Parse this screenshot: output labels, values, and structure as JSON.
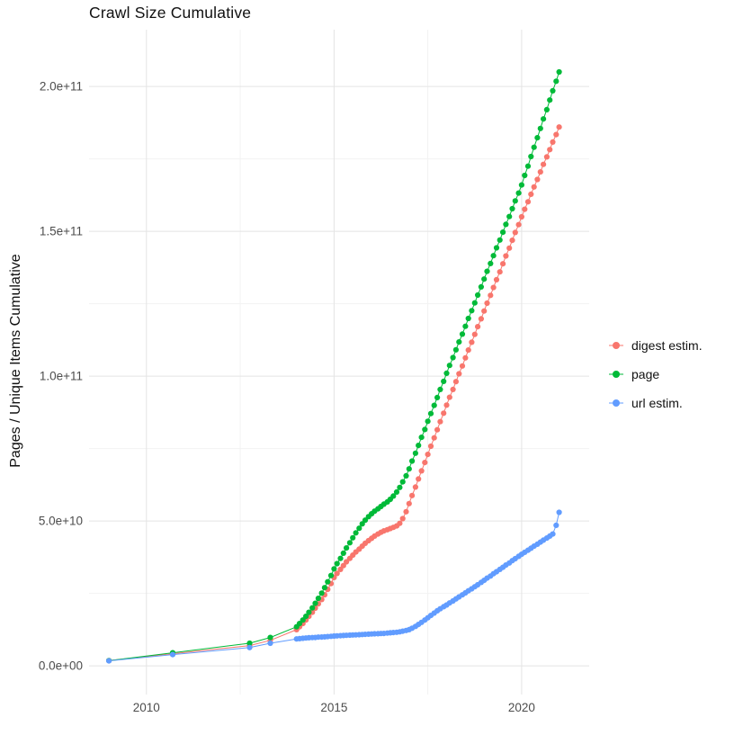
{
  "colors": {
    "background": "#FFFFFF",
    "grid_major": "#E4E4E4",
    "grid_minor": "#F2F2F2",
    "axis_text": "#4D4D4D",
    "title_text": "#111111"
  },
  "chart_data": {
    "type": "scatter",
    "title": "Crawl Size Cumulative",
    "xlabel": "",
    "ylabel": "Pages / Unique Items Cumulative",
    "legend_position": "right",
    "grid": true,
    "y_scale": "1e9",
    "x_domain": [
      2008.47,
      2021.8
    ],
    "y_domain_e9": [
      -9.9,
      219.6
    ],
    "x_ticks": {
      "values": [
        2010,
        2015,
        2020
      ],
      "labels": [
        "2010",
        "2015",
        "2020"
      ]
    },
    "x_minor_ticks": [
      2012.5,
      2017.5
    ],
    "y_ticks": {
      "values_e9": [
        0,
        50,
        100,
        150,
        200
      ],
      "labels": [
        "0.0e+00",
        "5.0e+10",
        "1.0e+11",
        "1.5e+11",
        "2.0e+11"
      ]
    },
    "y_minor_ticks_e9": [
      25,
      75,
      125,
      175
    ],
    "x": [
      2009,
      2010.7,
      2012.75,
      2013.3,
      2014,
      2014.08,
      2014.17,
      2014.25,
      2014.33,
      2014.42,
      2014.5,
      2014.58,
      2014.67,
      2014.75,
      2014.83,
      2014.92,
      2015,
      2015.08,
      2015.17,
      2015.25,
      2015.33,
      2015.42,
      2015.5,
      2015.58,
      2015.67,
      2015.75,
      2015.83,
      2015.92,
      2016,
      2016.08,
      2016.17,
      2016.25,
      2016.33,
      2016.42,
      2016.5,
      2016.58,
      2016.67,
      2016.75,
      2016.83,
      2016.92,
      2017,
      2017.08,
      2017.17,
      2017.25,
      2017.33,
      2017.42,
      2017.5,
      2017.58,
      2017.67,
      2017.75,
      2017.83,
      2017.92,
      2018,
      2018.08,
      2018.17,
      2018.25,
      2018.33,
      2018.42,
      2018.5,
      2018.58,
      2018.67,
      2018.75,
      2018.83,
      2018.92,
      2019,
      2019.08,
      2019.17,
      2019.25,
      2019.33,
      2019.42,
      2019.5,
      2019.58,
      2019.67,
      2019.75,
      2019.83,
      2019.92,
      2020,
      2020.08,
      2020.17,
      2020.25,
      2020.33,
      2020.42,
      2020.5,
      2020.58,
      2020.67,
      2020.75,
      2020.83,
      2020.92,
      2021
    ],
    "series": [
      {
        "name": "digest estim.",
        "color": "#F8766D",
        "values_e9": [
          1.8,
          4.2,
          7.0,
          8.8,
          12.5,
          13.5,
          14.6,
          15.8,
          17.1,
          18.5,
          19.9,
          21.4,
          22.9,
          24.5,
          26.4,
          28.4,
          30.5,
          31.9,
          33.3,
          34.6,
          35.9,
          37.1,
          38.2,
          39.3,
          40.3,
          41.3,
          42.3,
          43.2,
          44.0,
          44.8,
          45.5,
          46.1,
          46.6,
          47.0,
          47.4,
          47.8,
          48.3,
          49.2,
          50.8,
          53.2,
          56.0,
          58.8,
          61.7,
          64.5,
          67.3,
          70.2,
          73.0,
          75.8,
          78.7,
          81.5,
          84.3,
          87.2,
          90.0,
          92.7,
          95.4,
          98.1,
          100.8,
          103.5,
          106.3,
          109.0,
          111.7,
          114.4,
          117.1,
          119.8,
          122.5,
          125.2,
          127.9,
          130.6,
          133.3,
          136.0,
          138.8,
          141.5,
          144.2,
          146.9,
          149.6,
          152.3,
          155.0,
          157.6,
          160.2,
          162.8,
          165.3,
          167.9,
          170.5,
          173.1,
          175.7,
          178.2,
          180.8,
          183.4,
          186.0
        ]
      },
      {
        "name": "page",
        "color": "#00BA38",
        "values_e9": [
          1.8,
          4.5,
          7.8,
          9.8,
          13.5,
          14.6,
          15.8,
          17.1,
          18.5,
          20.0,
          21.6,
          23.3,
          25.1,
          27.0,
          29.0,
          31.2,
          33.5,
          35.3,
          37.1,
          38.9,
          40.7,
          42.5,
          44.2,
          45.9,
          47.5,
          49.0,
          50.3,
          51.5,
          52.5,
          53.4,
          54.2,
          55.0,
          55.8,
          56.6,
          57.5,
          58.6,
          60.0,
          61.6,
          63.5,
          65.6,
          68.0,
          70.7,
          73.4,
          76.1,
          78.9,
          81.6,
          84.4,
          87.1,
          89.9,
          92.6,
          95.4,
          98.2,
          101.0,
          103.7,
          106.4,
          109.1,
          111.8,
          114.5,
          117.2,
          119.9,
          122.6,
          125.3,
          128.0,
          130.8,
          133.5,
          136.2,
          138.9,
          141.6,
          144.3,
          147.0,
          149.7,
          152.4,
          155.1,
          157.8,
          160.5,
          163.2,
          166.0,
          169.3,
          172.5,
          175.8,
          179.0,
          182.3,
          185.5,
          188.8,
          192.0,
          195.3,
          198.5,
          201.8,
          205.0
        ]
      },
      {
        "name": "url estim.",
        "color": "#619CFF",
        "values_e9": [
          1.7,
          3.9,
          6.3,
          7.8,
          9.3,
          9.4,
          9.5,
          9.6,
          9.7,
          9.75,
          9.8,
          9.9,
          9.95,
          10.0,
          10.1,
          10.2,
          10.3,
          10.36,
          10.42,
          10.48,
          10.54,
          10.6,
          10.65,
          10.7,
          10.76,
          10.82,
          10.88,
          10.94,
          11.0,
          11.05,
          11.1,
          11.15,
          11.2,
          11.3,
          11.4,
          11.5,
          11.6,
          11.75,
          11.95,
          12.2,
          12.5,
          13.0,
          13.6,
          14.3,
          15.0,
          15.8,
          16.6,
          17.4,
          18.2,
          19.0,
          19.7,
          20.4,
          21.0,
          21.7,
          22.4,
          23.1,
          23.8,
          24.5,
          25.2,
          25.9,
          26.6,
          27.3,
          28.0,
          28.8,
          29.5,
          30.3,
          31.0,
          31.8,
          32.5,
          33.3,
          34.0,
          34.8,
          35.5,
          36.3,
          37.0,
          37.8,
          38.5,
          39.2,
          39.9,
          40.6,
          41.3,
          42.0,
          42.7,
          43.4,
          44.1,
          44.8,
          45.5,
          48.5,
          53.0
        ]
      }
    ]
  }
}
